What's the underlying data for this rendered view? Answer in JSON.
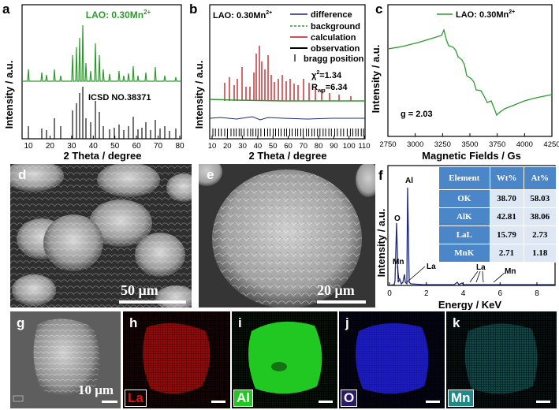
{
  "panels": {
    "a": {
      "letter": "a",
      "legend": "LAO: 0.30Mn",
      "legend_sup": "2+",
      "ref_label": "ICSD NO.38371",
      "xlabel": "2 Theta / degree",
      "ylabel": "Intensity / a.u.",
      "xticks": [
        "10",
        "20",
        "30",
        "40",
        "50",
        "60",
        "70",
        "80"
      ]
    },
    "b": {
      "letter": "b",
      "title": "LAO: 0.30Mn",
      "title_sup": "2+",
      "legend": [
        "difference",
        "background",
        "calculation",
        "observation",
        "bragg position"
      ],
      "chi": "χ",
      "chi_sup": "2",
      "chi_val": "=1.34",
      "rwp": "R",
      "rwp_sub": "wp",
      "rwp_val": "=6.34",
      "xlabel": "2 Theta / degree",
      "ylabel": "Intensity / a.u.",
      "xticks": [
        "10",
        "20",
        "30",
        "40",
        "50",
        "60",
        "70",
        "80",
        "90",
        "100",
        "110"
      ]
    },
    "c": {
      "letter": "c",
      "legend": "LAO: 0.30Mn",
      "legend_sup": "2+",
      "g_label": "g = 2.03",
      "xlabel": "Magnetic Fields / Gs",
      "ylabel": "Intensity / a.u.",
      "xticks": [
        "2750",
        "3000",
        "3250",
        "3500",
        "3750",
        "4000",
        "4250"
      ]
    },
    "d": {
      "letter": "d",
      "scale": "50 μm"
    },
    "e": {
      "letter": "e",
      "scale": "20 μm"
    },
    "f": {
      "letter": "f",
      "xlabel": "Energy / KeV",
      "ylabel": "Intensity / a.u.",
      "xticks": [
        "0",
        "2",
        "4",
        "6",
        "8"
      ],
      "peaks": [
        "O",
        "Al",
        "Mn",
        "La",
        "La",
        "Mn"
      ],
      "table": {
        "header": [
          "Element",
          "Wt%",
          "At%"
        ],
        "rows": [
          [
            "OK",
            "38.70",
            "58.03"
          ],
          [
            "AlK",
            "42.81",
            "38.06"
          ],
          [
            "LaL",
            "15.79",
            "2.73"
          ],
          [
            "MnK",
            "2.71",
            "1.18"
          ]
        ]
      }
    },
    "g": {
      "letter": "g",
      "scale": "10 μm"
    },
    "h": {
      "letter": "h",
      "element": "La"
    },
    "i": {
      "letter": "i",
      "element": "Al"
    },
    "j": {
      "letter": "j",
      "element": "O"
    },
    "k": {
      "letter": "k",
      "element": "Mn"
    }
  },
  "colors": {
    "green": "#2e9a2e",
    "navy": "#1f2a7a",
    "red": "#c0161c",
    "table_header": "#4a86c8",
    "table_row": "#dde8f4",
    "la_map": "#e01010",
    "al_map": "#22c822",
    "o_map": "#2020e0",
    "mn_map": "#20a0a0"
  },
  "chart_data": [
    {
      "type": "line",
      "title": "",
      "xlabel": "2 Theta / degree",
      "ylabel": "Intensity / a.u.",
      "xlim": [
        5,
        80
      ],
      "series": [
        {
          "name": "LAO: 0.30Mn2+",
          "x": [
            8,
            20,
            23.5,
            29,
            33.5,
            34.2,
            36,
            38.5,
            41.5,
            43,
            47,
            48.5,
            54,
            58,
            60,
            66,
            68,
            75,
            78
          ],
          "y": [
            0.15,
            0.25,
            0.35,
            0.2,
            0.7,
            1.0,
            0.55,
            0.45,
            0.75,
            0.5,
            0.3,
            0.25,
            0.2,
            0.35,
            0.4,
            0.25,
            0.3,
            0.15,
            0.2
          ]
        },
        {
          "name": "ICSD NO.38371",
          "x": [
            8,
            20,
            23.5,
            29,
            33.5,
            34.2,
            36,
            38.5,
            41.5,
            43,
            47,
            48.5,
            54,
            58,
            60,
            66,
            68,
            75,
            78
          ],
          "y": [
            0.3,
            0.4,
            0.5,
            0.35,
            0.9,
            1.0,
            0.6,
            0.5,
            0.8,
            0.55,
            0.35,
            0.3,
            0.25,
            0.5,
            0.55,
            0.35,
            0.4,
            0.2,
            0.25
          ]
        }
      ]
    },
    {
      "type": "line",
      "title": "LAO: 0.30Mn2+",
      "xlabel": "2 Theta / degree",
      "ylabel": "Intensity / a.u.",
      "xlim": [
        5,
        110
      ],
      "series": [
        {
          "name": "observation",
          "x": [
            19,
            20,
            24,
            33,
            34,
            35,
            38,
            41,
            43,
            48,
            58,
            60,
            68,
            78,
            92
          ],
          "y": [
            0.3,
            0.45,
            0.6,
            0.75,
            1.0,
            0.9,
            0.5,
            0.55,
            0.45,
            0.35,
            0.45,
            0.5,
            0.3,
            0.25,
            0.15
          ]
        },
        {
          "name": "calculation",
          "x": [
            19,
            20,
            24,
            33,
            34,
            35,
            38,
            41,
            43,
            48,
            58,
            60,
            68,
            78,
            92
          ],
          "y": [
            0.3,
            0.45,
            0.6,
            0.75,
            1.0,
            0.9,
            0.5,
            0.55,
            0.45,
            0.35,
            0.45,
            0.5,
            0.3,
            0.25,
            0.15
          ]
        }
      ]
    },
    {
      "type": "line",
      "title": "",
      "xlabel": "Magnetic Fields / Gs",
      "ylabel": "Intensity / a.u.",
      "xlim": [
        2750,
        4250
      ],
      "series": [
        {
          "name": "LAO: 0.30Mn2+",
          "x": [
            2750,
            3000,
            3250,
            3300,
            3400,
            3500,
            3550,
            3650,
            3750,
            4000,
            4250
          ],
          "y": [
            0.7,
            0.8,
            0.85,
            0.6,
            0.45,
            0.3,
            0.2,
            0.1,
            -0.1,
            0.05,
            0.15
          ]
        }
      ]
    },
    {
      "type": "bar",
      "title": "",
      "xlabel": "Energy / KeV",
      "ylabel": "Intensity / a.u.",
      "xlim": [
        0,
        9
      ],
      "categories": [
        "O",
        "Mn",
        "Al",
        "La",
        "La",
        "La",
        "Mn"
      ],
      "x": [
        0.52,
        0.64,
        1.49,
        0.83,
        4.65,
        5.04,
        5.9
      ],
      "values": [
        0.55,
        0.05,
        1.0,
        0.05,
        0.04,
        0.03,
        0.03
      ]
    }
  ]
}
